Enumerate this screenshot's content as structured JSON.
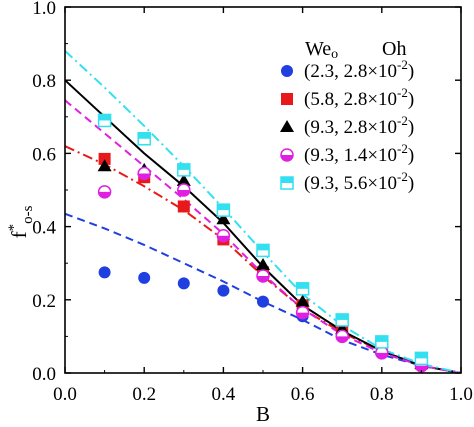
{
  "chart_data": {
    "type": "scatter",
    "xlabel": "B",
    "ylabel": "f*o-s",
    "xlim": [
      0.0,
      1.0
    ],
    "ylim": [
      0.0,
      1.0
    ],
    "x_ticks": [
      "0.0",
      "0.2",
      "0.4",
      "0.6",
      "0.8",
      "1.0"
    ],
    "y_ticks": [
      "0.0",
      "0.2",
      "0.4",
      "0.6",
      "0.8",
      "1.0"
    ],
    "grid": false,
    "legend": {
      "placement": "top-right",
      "header_we": "We",
      "header_we_sub": "o",
      "header_oh": "Oh"
    },
    "series": [
      {
        "name": "(2.3, 2.8×10-2)",
        "label_main": "(2.3, 2.8×10",
        "label_sup": "-2",
        "label_end": ")",
        "color": "#1f3fe0",
        "marker": "circle",
        "line_style": "dash",
        "x": [
          0.1,
          0.2,
          0.3,
          0.4,
          0.5,
          0.6,
          0.7,
          0.8,
          0.9
        ],
        "values": [
          0.275,
          0.26,
          0.245,
          0.225,
          0.195,
          0.155,
          0.11,
          0.06,
          0.025
        ],
        "fit_x": [
          0.0,
          0.1,
          0.2,
          0.3,
          0.4,
          0.5,
          0.6,
          0.7,
          0.8,
          0.9,
          1.0
        ],
        "fit_y": [
          0.435,
          0.395,
          0.35,
          0.3,
          0.25,
          0.195,
          0.145,
          0.09,
          0.05,
          0.02,
          0.0
        ]
      },
      {
        "name": "(5.8, 2.8×10-2)",
        "label_main": "(5.8, 2.8×10",
        "label_sup": "-2",
        "label_end": ")",
        "color": "#e8191a",
        "marker": "square",
        "line_style": "dashdot",
        "x": [
          0.1,
          0.2,
          0.3,
          0.4,
          0.5,
          0.6,
          0.7,
          0.8,
          0.9
        ],
        "values": [
          0.585,
          0.535,
          0.455,
          0.365,
          0.275,
          0.185,
          0.115,
          0.065,
          0.025
        ],
        "fit_x": [
          0.0,
          0.1,
          0.2,
          0.3,
          0.4,
          0.5,
          0.6,
          0.7,
          0.8,
          0.9,
          1.0
        ],
        "fit_y": [
          0.62,
          0.57,
          0.51,
          0.445,
          0.365,
          0.265,
          0.175,
          0.11,
          0.06,
          0.02,
          0.0
        ]
      },
      {
        "name": "(9.3, 2.8×10-2)",
        "label_main": "(9.3, 2.8×10",
        "label_sup": "-2",
        "label_end": ")",
        "color": "#000000",
        "marker": "triangle",
        "line_style": "solid",
        "x": [
          0.1,
          0.2,
          0.3,
          0.4,
          0.5,
          0.6,
          0.7,
          0.8,
          0.9
        ],
        "values": [
          0.565,
          0.555,
          0.525,
          0.42,
          0.295,
          0.195,
          0.12,
          0.065,
          0.025
        ],
        "fit_x": [
          0.0,
          0.1,
          0.2,
          0.3,
          0.4,
          0.5,
          0.6,
          0.7,
          0.8,
          0.9,
          1.0
        ],
        "fit_y": [
          0.8,
          0.7,
          0.6,
          0.51,
          0.41,
          0.29,
          0.185,
          0.115,
          0.06,
          0.02,
          0.0
        ]
      },
      {
        "name": "(9.3, 1.4×10-2)",
        "label_main": "(9.3, 1.4×10",
        "label_sup": "-2",
        "label_end": ")",
        "color": "#e020e0",
        "marker": "half-circle",
        "line_style": "dash",
        "x": [
          0.1,
          0.2,
          0.3,
          0.4,
          0.5,
          0.6,
          0.7,
          0.8,
          0.9
        ],
        "values": [
          0.495,
          0.545,
          0.5,
          0.375,
          0.265,
          0.165,
          0.1,
          0.055,
          0.02
        ],
        "fit_x": [
          0.0,
          0.1,
          0.2,
          0.3,
          0.4,
          0.5,
          0.6,
          0.7,
          0.8,
          0.9,
          1.0
        ],
        "fit_y": [
          0.745,
          0.655,
          0.565,
          0.475,
          0.38,
          0.27,
          0.175,
          0.105,
          0.055,
          0.02,
          0.0
        ]
      },
      {
        "name": "(9.3, 5.6×10-2)",
        "label_main": "(9.3, 5.6×10",
        "label_sup": "-2",
        "label_end": ")",
        "color": "#33e0f0",
        "marker": "half-square",
        "line_style": "dashdot",
        "x": [
          0.1,
          0.2,
          0.3,
          0.4,
          0.5,
          0.6,
          0.7,
          0.8,
          0.9
        ],
        "values": [
          0.69,
          0.64,
          0.555,
          0.445,
          0.335,
          0.23,
          0.145,
          0.085,
          0.04
        ],
        "fit_x": [
          0.0,
          0.1,
          0.2,
          0.3,
          0.4,
          0.5,
          0.6,
          0.7,
          0.8,
          0.9,
          1.0
        ],
        "fit_y": [
          0.88,
          0.78,
          0.675,
          0.565,
          0.45,
          0.33,
          0.215,
          0.13,
          0.065,
          0.025,
          0.0
        ]
      }
    ]
  }
}
